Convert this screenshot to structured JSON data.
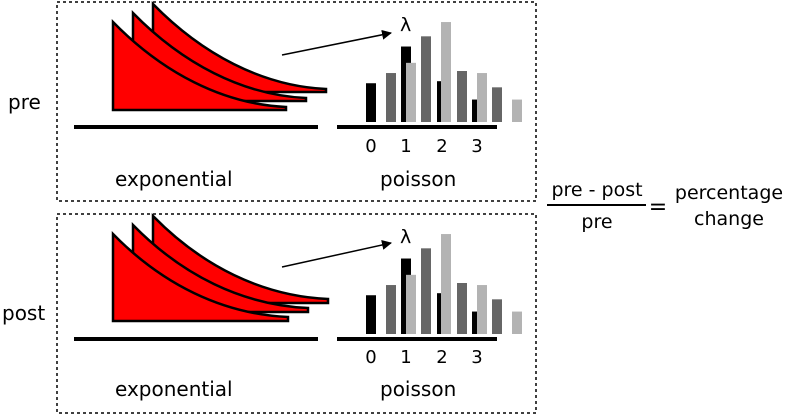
{
  "panels": [
    {
      "id": "pre",
      "row_label": "pre",
      "left_caption": "exponential",
      "right_caption": "poisson",
      "lambda_symbol": "λ",
      "ticks": [
        "0",
        "1",
        "2",
        "3"
      ]
    },
    {
      "id": "post",
      "row_label": "post",
      "left_caption": "exponential",
      "right_caption": "poisson",
      "lambda_symbol": "λ",
      "ticks": [
        "0",
        "1",
        "2",
        "3"
      ]
    }
  ],
  "formula": {
    "numerator": "pre - post",
    "denominator": "pre",
    "equals": "=",
    "result_line1": "percentage",
    "result_line2": "change"
  },
  "colors": {
    "exponential_fill": "#ff0000",
    "bar_dark": "#000000",
    "bar_mid": "#666666",
    "bar_light": "#b3b3b3"
  },
  "poisson_series": [
    {
      "shade": "dark",
      "values": [
        0.38,
        0.74,
        0.4,
        0.22
      ]
    },
    {
      "shade": "mid",
      "values": [
        0.48,
        0.84,
        0.5,
        0.34
      ]
    },
    {
      "shade": "light",
      "values": [
        0.58,
        0.98,
        0.48,
        0.22
      ]
    }
  ]
}
